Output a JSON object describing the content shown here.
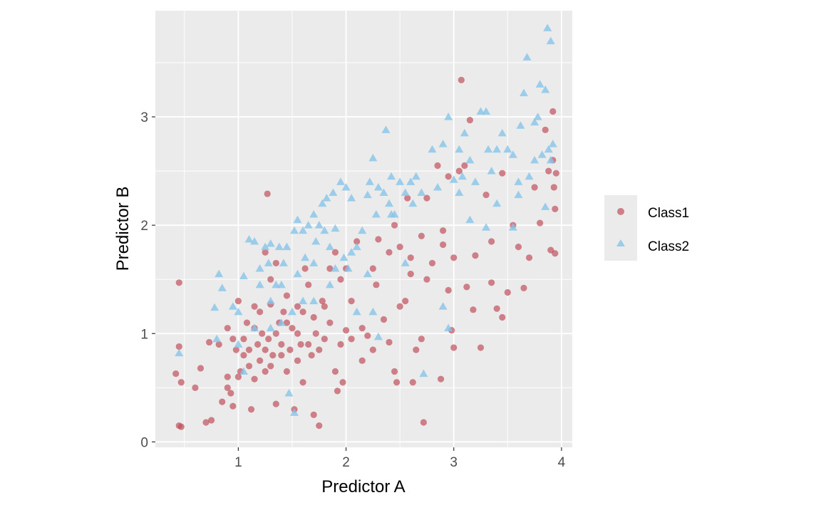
{
  "chart_data": {
    "type": "scatter",
    "title": "",
    "xlabel": "Predictor A",
    "ylabel": "Predictor B",
    "xlim": [
      0.23,
      4.1
    ],
    "ylim": [
      -0.05,
      3.98
    ],
    "xticks": [
      1,
      2,
      3,
      4
    ],
    "yticks": [
      0,
      1,
      2,
      3
    ],
    "grid": true,
    "legend_position": "right",
    "colors": {
      "Class1": "#C0505D",
      "Class2": "#87C4EA",
      "panel": "#EBEBEB",
      "grid": "#FFFFFF"
    },
    "series": [
      {
        "name": "Class1",
        "marker": "circle",
        "points": [
          [
            0.45,
            1.47
          ],
          [
            0.42,
            0.63
          ],
          [
            0.45,
            0.88
          ],
          [
            0.47,
            0.55
          ],
          [
            0.45,
            0.15
          ],
          [
            0.47,
            0.14
          ],
          [
            0.6,
            0.5
          ],
          [
            0.65,
            0.68
          ],
          [
            0.7,
            0.18
          ],
          [
            0.75,
            0.2
          ],
          [
            0.73,
            0.92
          ],
          [
            0.82,
            0.9
          ],
          [
            0.85,
            0.37
          ],
          [
            0.9,
            0.6
          ],
          [
            0.9,
            0.5
          ],
          [
            0.93,
            0.45
          ],
          [
            0.95,
            0.33
          ],
          [
            0.98,
            0.85
          ],
          [
            1.0,
            1.3
          ],
          [
            1.02,
            0.65
          ],
          [
            1.05,
            0.8
          ],
          [
            1.08,
            1.1
          ],
          [
            1.1,
            0.7
          ],
          [
            1.12,
            0.3
          ],
          [
            1.15,
            0.58
          ],
          [
            1.15,
            1.25
          ],
          [
            1.18,
            0.9
          ],
          [
            1.2,
            0.75
          ],
          [
            1.22,
            1.0
          ],
          [
            1.25,
            0.65
          ],
          [
            1.27,
            2.29
          ],
          [
            1.28,
            0.95
          ],
          [
            1.3,
            1.27
          ],
          [
            1.32,
            0.8
          ],
          [
            1.35,
            0.35
          ],
          [
            1.38,
            1.1
          ],
          [
            1.4,
            0.9
          ],
          [
            1.42,
            1.2
          ],
          [
            1.45,
            0.65
          ],
          [
            1.48,
            0.85
          ],
          [
            1.5,
            1.05
          ],
          [
            1.52,
            0.3
          ],
          [
            1.55,
            1.0
          ],
          [
            1.58,
            0.9
          ],
          [
            1.6,
            0.55
          ],
          [
            1.62,
            1.6
          ],
          [
            1.65,
            1.45
          ],
          [
            1.68,
            0.8
          ],
          [
            1.7,
            0.25
          ],
          [
            1.72,
            1.0
          ],
          [
            1.75,
            0.15
          ],
          [
            1.78,
            1.3
          ],
          [
            1.8,
            0.95
          ],
          [
            1.85,
            1.1
          ],
          [
            1.9,
            0.65
          ],
          [
            1.92,
            0.47
          ],
          [
            1.95,
            1.5
          ],
          [
            1.97,
            0.55
          ],
          [
            2.0,
            1.03
          ],
          [
            2.05,
            1.3
          ],
          [
            2.1,
            1.85
          ],
          [
            2.15,
            0.75
          ],
          [
            2.2,
            0.98
          ],
          [
            2.25,
            0.85
          ],
          [
            2.28,
            1.45
          ],
          [
            2.3,
            1.87
          ],
          [
            2.35,
            1.13
          ],
          [
            2.4,
            0.92
          ],
          [
            2.45,
            0.65
          ],
          [
            2.47,
            0.55
          ],
          [
            2.5,
            1.25
          ],
          [
            2.55,
            1.3
          ],
          [
            2.57,
            2.25
          ],
          [
            2.6,
            1.55
          ],
          [
            2.62,
            0.55
          ],
          [
            2.65,
            0.85
          ],
          [
            2.7,
            0.95
          ],
          [
            2.72,
            0.18
          ],
          [
            2.75,
            1.5
          ],
          [
            2.8,
            1.65
          ],
          [
            2.85,
            2.55
          ],
          [
            2.88,
            0.58
          ],
          [
            2.9,
            1.82
          ],
          [
            2.95,
            1.4
          ],
          [
            2.98,
            1.03
          ],
          [
            3.0,
            0.87
          ],
          [
            3.05,
            2.5
          ],
          [
            3.07,
            3.34
          ],
          [
            3.12,
            1.43
          ],
          [
            3.15,
            2.97
          ],
          [
            3.18,
            1.22
          ],
          [
            3.2,
            1.72
          ],
          [
            3.25,
            0.87
          ],
          [
            3.3,
            2.28
          ],
          [
            3.35,
            1.47
          ],
          [
            3.4,
            1.23
          ],
          [
            3.45,
            2.48
          ],
          [
            3.5,
            1.38
          ],
          [
            3.55,
            2.0
          ],
          [
            3.6,
            1.8
          ],
          [
            3.65,
            1.42
          ],
          [
            3.7,
            1.7
          ],
          [
            3.75,
            2.35
          ],
          [
            3.8,
            2.02
          ],
          [
            3.85,
            2.88
          ],
          [
            3.88,
            2.5
          ],
          [
            3.9,
            1.77
          ],
          [
            3.92,
            3.05
          ],
          [
            3.92,
            2.6
          ],
          [
            3.93,
            2.35
          ],
          [
            3.94,
            2.15
          ],
          [
            3.94,
            1.74
          ],
          [
            3.95,
            2.48
          ],
          [
            1.05,
            0.95
          ],
          [
            1.1,
            0.85
          ],
          [
            1.2,
            1.2
          ],
          [
            1.25,
            0.85
          ],
          [
            1.3,
            0.7
          ],
          [
            1.35,
            1.0
          ],
          [
            1.4,
            0.8
          ],
          [
            1.45,
            1.1
          ],
          [
            1.55,
            0.75
          ],
          [
            1.6,
            1.2
          ],
          [
            1.65,
            0.9
          ],
          [
            1.7,
            1.15
          ],
          [
            1.75,
            0.85
          ],
          [
            0.95,
            0.95
          ],
          [
            0.9,
            1.05
          ],
          [
            1.0,
            0.6
          ],
          [
            1.15,
            1.05
          ],
          [
            1.3,
            1.5
          ],
          [
            1.35,
            1.65
          ],
          [
            1.25,
            1.75
          ],
          [
            1.45,
            1.35
          ],
          [
            1.55,
            1.25
          ],
          [
            1.8,
            1.25
          ],
          [
            1.85,
            1.6
          ],
          [
            1.9,
            1.75
          ],
          [
            2.0,
            1.6
          ],
          [
            2.25,
            1.6
          ],
          [
            2.4,
            1.75
          ],
          [
            2.45,
            2.0
          ],
          [
            2.5,
            1.8
          ],
          [
            2.6,
            1.7
          ],
          [
            2.7,
            1.9
          ],
          [
            2.75,
            2.25
          ],
          [
            2.9,
            1.95
          ],
          [
            3.0,
            1.7
          ],
          [
            2.95,
            2.45
          ],
          [
            3.1,
            2.55
          ],
          [
            3.35,
            1.85
          ],
          [
            3.45,
            1.15
          ],
          [
            2.15,
            1.05
          ],
          [
            1.95,
            0.9
          ],
          [
            2.05,
            0.95
          ]
        ]
      },
      {
        "name": "Class2",
        "marker": "triangle",
        "points": [
          [
            0.45,
            0.82
          ],
          [
            0.78,
            1.24
          ],
          [
            0.82,
            1.55
          ],
          [
            0.85,
            1.42
          ],
          [
            0.8,
            0.95
          ],
          [
            0.95,
            1.25
          ],
          [
            1.0,
            1.2
          ],
          [
            1.05,
            1.53
          ],
          [
            1.1,
            1.87
          ],
          [
            1.15,
            1.85
          ],
          [
            1.2,
            1.45
          ],
          [
            1.2,
            1.6
          ],
          [
            1.25,
            1.8
          ],
          [
            1.28,
            1.65
          ],
          [
            1.3,
            1.83
          ],
          [
            1.35,
            1.45
          ],
          [
            1.38,
            1.8
          ],
          [
            1.42,
            1.65
          ],
          [
            1.45,
            1.8
          ],
          [
            1.47,
            0.45
          ],
          [
            1.52,
            0.27
          ],
          [
            1.5,
            1.2
          ],
          [
            1.52,
            1.95
          ],
          [
            1.55,
            2.05
          ],
          [
            1.6,
            1.95
          ],
          [
            1.62,
            1.7
          ],
          [
            1.65,
            2.0
          ],
          [
            1.7,
            2.1
          ],
          [
            1.72,
            1.85
          ],
          [
            1.75,
            2.0
          ],
          [
            1.78,
            2.2
          ],
          [
            1.8,
            1.95
          ],
          [
            1.82,
            2.25
          ],
          [
            1.85,
            1.8
          ],
          [
            1.88,
            2.3
          ],
          [
            1.9,
            1.97
          ],
          [
            1.95,
            2.4
          ],
          [
            1.98,
            1.7
          ],
          [
            2.0,
            2.35
          ],
          [
            2.02,
            1.6
          ],
          [
            2.05,
            2.25
          ],
          [
            2.1,
            1.8
          ],
          [
            2.15,
            1.95
          ],
          [
            2.2,
            2.28
          ],
          [
            2.22,
            2.4
          ],
          [
            2.25,
            2.62
          ],
          [
            2.28,
            2.1
          ],
          [
            2.3,
            2.35
          ],
          [
            2.35,
            2.3
          ],
          [
            2.37,
            2.88
          ],
          [
            2.4,
            2.2
          ],
          [
            2.42,
            2.45
          ],
          [
            2.45,
            2.1
          ],
          [
            2.5,
            2.4
          ],
          [
            2.55,
            2.3
          ],
          [
            2.6,
            2.4
          ],
          [
            2.62,
            2.2
          ],
          [
            2.65,
            2.45
          ],
          [
            2.7,
            2.3
          ],
          [
            2.72,
            0.63
          ],
          [
            2.8,
            2.7
          ],
          [
            2.85,
            2.35
          ],
          [
            2.9,
            2.75
          ],
          [
            2.95,
            3.0
          ],
          [
            2.95,
            1.05
          ],
          [
            3.0,
            2.42
          ],
          [
            3.05,
            2.7
          ],
          [
            3.08,
            2.45
          ],
          [
            3.1,
            2.85
          ],
          [
            3.15,
            2.6
          ],
          [
            3.2,
            2.4
          ],
          [
            3.25,
            3.05
          ],
          [
            3.3,
            3.05
          ],
          [
            3.32,
            2.7
          ],
          [
            3.35,
            2.5
          ],
          [
            3.4,
            2.7
          ],
          [
            3.45,
            2.85
          ],
          [
            3.5,
            2.7
          ],
          [
            3.55,
            2.65
          ],
          [
            3.6,
            2.4
          ],
          [
            3.65,
            3.22
          ],
          [
            3.68,
            3.55
          ],
          [
            3.7,
            2.45
          ],
          [
            3.75,
            2.95
          ],
          [
            3.78,
            3.0
          ],
          [
            3.8,
            3.3
          ],
          [
            3.82,
            2.65
          ],
          [
            3.85,
            3.25
          ],
          [
            3.87,
            3.82
          ],
          [
            3.9,
            3.7
          ],
          [
            3.92,
            2.75
          ],
          [
            3.88,
            2.7
          ],
          [
            3.75,
            2.6
          ],
          [
            3.62,
            2.92
          ],
          [
            3.4,
            2.2
          ],
          [
            3.3,
            1.98
          ],
          [
            3.15,
            2.05
          ],
          [
            3.05,
            2.3
          ],
          [
            2.9,
            1.25
          ],
          [
            2.25,
            1.2
          ],
          [
            2.3,
            0.97
          ],
          [
            2.42,
            2.1
          ],
          [
            2.55,
            1.65
          ],
          [
            2.2,
            1.55
          ],
          [
            2.05,
            1.75
          ],
          [
            1.85,
            1.45
          ],
          [
            1.7,
            1.3
          ],
          [
            1.6,
            1.3
          ],
          [
            1.55,
            1.55
          ],
          [
            1.4,
            1.45
          ],
          [
            1.3,
            1.3
          ],
          [
            1.15,
            1.05
          ],
          [
            1.05,
            0.65
          ],
          [
            1.0,
            0.9
          ],
          [
            1.3,
            1.05
          ],
          [
            1.4,
            1.1
          ],
          [
            1.7,
            1.65
          ],
          [
            1.9,
            1.6
          ],
          [
            2.1,
            1.2
          ],
          [
            3.55,
            1.98
          ],
          [
            3.85,
            2.17
          ],
          [
            3.9,
            2.6
          ],
          [
            3.6,
            2.28
          ]
        ]
      }
    ]
  }
}
